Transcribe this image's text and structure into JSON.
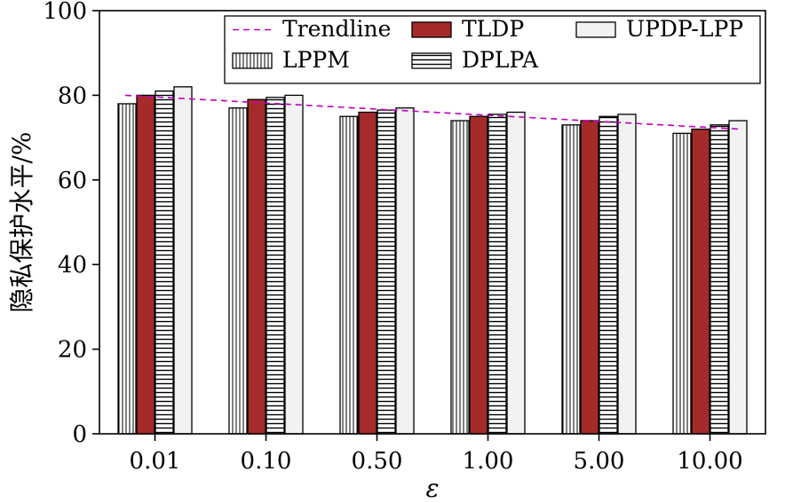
{
  "chart_data": {
    "type": "bar",
    "title": "",
    "xlabel": "ε",
    "ylabel": "隐私保护水平/%",
    "categories": [
      "0.01",
      "0.10",
      "0.50",
      "1.00",
      "5.00",
      "10.00"
    ],
    "ylim": [
      0,
      100
    ],
    "yticks": [
      0,
      20,
      40,
      60,
      80,
      100
    ],
    "grid": false,
    "legend_position": "top-right",
    "series": [
      {
        "name": "LPPM",
        "pattern": "vertical-lines",
        "color": "#ffffff",
        "values": [
          78,
          77,
          75,
          74,
          73,
          71
        ]
      },
      {
        "name": "TLDP",
        "pattern": "solid",
        "color": "#a52a2a",
        "values": [
          80,
          79,
          76,
          75,
          74,
          72
        ]
      },
      {
        "name": "DPLPA",
        "pattern": "horizontal-lines",
        "color": "#ffffff",
        "values": [
          81,
          79.5,
          76.5,
          75.5,
          75,
          73
        ]
      },
      {
        "name": "UPDP-LPP",
        "pattern": "solid",
        "color": "#f2f2f2",
        "values": [
          82,
          80,
          77,
          76,
          75.5,
          74
        ]
      }
    ],
    "trendline": {
      "name": "Trendline",
      "color": "#c000c0",
      "style": "dashed",
      "start": 80,
      "end": 72
    },
    "legend_order": [
      "Trendline",
      "TLDP",
      "UPDP-LPP",
      "LPPM",
      "DPLPA"
    ]
  }
}
